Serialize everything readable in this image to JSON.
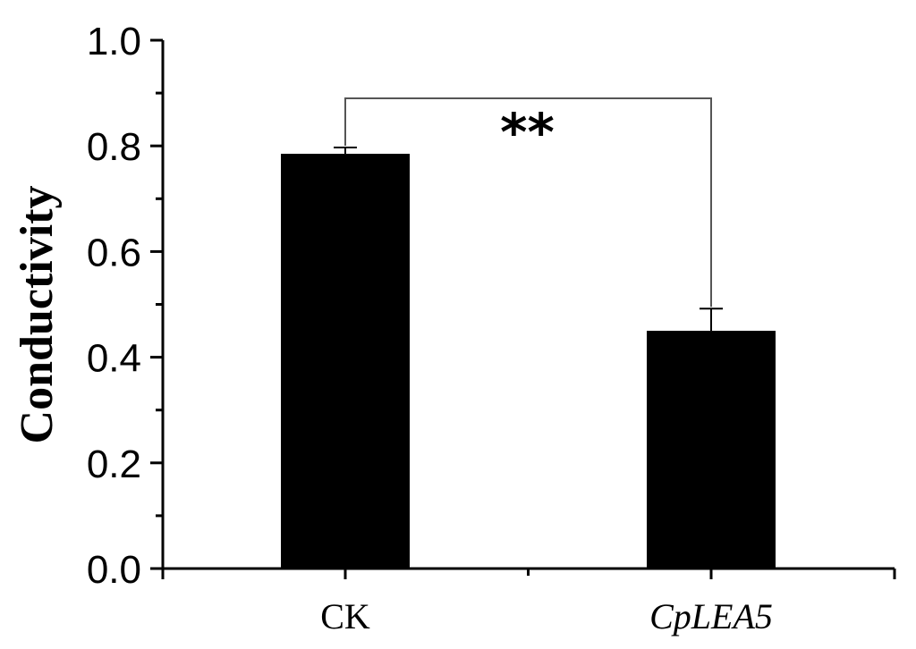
{
  "chart_data": {
    "type": "bar",
    "ylabel": "Conductivity",
    "xlabel": "",
    "categories": [
      "CK",
      "CpLEA5"
    ],
    "category_italic": [
      false,
      true
    ],
    "values": [
      0.785,
      0.45
    ],
    "errors": [
      0.012,
      0.042
    ],
    "ylim": [
      0,
      1.0
    ],
    "yticks": [
      "0.0",
      "0.2",
      "0.4",
      "0.6",
      "0.8",
      "1.0"
    ],
    "grid": false,
    "legend": "none",
    "bar_color": "#000000",
    "significance": {
      "label": "**",
      "between": [
        "CK",
        "CpLEA5"
      ]
    }
  }
}
